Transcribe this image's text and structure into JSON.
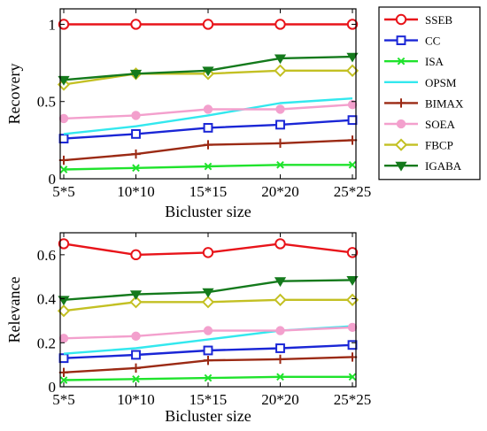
{
  "chart_data": [
    {
      "type": "line",
      "xlabel": "Bicluster size",
      "ylabel": "Recovery",
      "categories": [
        "5*5",
        "10*10",
        "15*15",
        "20*20",
        "25*25"
      ],
      "ylim": [
        0,
        1.1
      ],
      "yticks": [
        0,
        0.5,
        1
      ],
      "ytick_labels": [
        "0",
        "0.5",
        "1"
      ],
      "legend_position": "right",
      "series": [
        {
          "name": "SSEB",
          "color": "#e8141a",
          "marker": "circle-open",
          "values": [
            1.0,
            1.0,
            1.0,
            1.0,
            1.0
          ]
        },
        {
          "name": "CC",
          "color": "#1a26d6",
          "marker": "square-open",
          "values": [
            0.26,
            0.29,
            0.33,
            0.35,
            0.38
          ]
        },
        {
          "name": "ISA",
          "color": "#1fe32c",
          "marker": "x",
          "values": [
            0.06,
            0.07,
            0.08,
            0.09,
            0.09
          ]
        },
        {
          "name": "OPSM",
          "color": "#33e8ee",
          "marker": "none",
          "values": [
            0.29,
            0.34,
            0.41,
            0.49,
            0.52
          ]
        },
        {
          "name": "BIMAX",
          "color": "#9b2a14",
          "marker": "plus",
          "values": [
            0.12,
            0.16,
            0.22,
            0.23,
            0.25
          ]
        },
        {
          "name": "SOEA",
          "color": "#f3a0cd",
          "marker": "circle-filled",
          "values": [
            0.39,
            0.41,
            0.45,
            0.45,
            0.48
          ]
        },
        {
          "name": "FBCP",
          "color": "#c3c023",
          "marker": "diamond-open",
          "values": [
            0.61,
            0.68,
            0.68,
            0.7,
            0.7
          ]
        },
        {
          "name": "IGABA",
          "color": "#147a1c",
          "marker": "triangle-down",
          "values": [
            0.64,
            0.68,
            0.7,
            0.78,
            0.79
          ]
        }
      ]
    },
    {
      "type": "line",
      "xlabel": "Bicluster size",
      "ylabel": "Relevance",
      "categories": [
        "5*5",
        "10*10",
        "15*15",
        "20*20",
        "25*25"
      ],
      "ylim": [
        0,
        0.7
      ],
      "yticks": [
        0,
        0.2,
        0.4,
        0.6
      ],
      "ytick_labels": [
        "0",
        "0.2",
        "0.4",
        "0.6"
      ],
      "series": [
        {
          "name": "SSEB",
          "color": "#e8141a",
          "marker": "circle-open",
          "values": [
            0.65,
            0.6,
            0.61,
            0.65,
            0.61
          ]
        },
        {
          "name": "CC",
          "color": "#1a26d6",
          "marker": "square-open",
          "values": [
            0.13,
            0.145,
            0.165,
            0.175,
            0.19
          ]
        },
        {
          "name": "ISA",
          "color": "#1fe32c",
          "marker": "x",
          "values": [
            0.03,
            0.035,
            0.04,
            0.045,
            0.045
          ]
        },
        {
          "name": "OPSM",
          "color": "#33e8ee",
          "marker": "none",
          "values": [
            0.15,
            0.175,
            0.215,
            0.255,
            0.275
          ]
        },
        {
          "name": "BIMAX",
          "color": "#9b2a14",
          "marker": "plus",
          "values": [
            0.065,
            0.085,
            0.12,
            0.125,
            0.135
          ]
        },
        {
          "name": "SOEA",
          "color": "#f3a0cd",
          "marker": "circle-filled",
          "values": [
            0.22,
            0.23,
            0.255,
            0.255,
            0.27
          ]
        },
        {
          "name": "FBCP",
          "color": "#c3c023",
          "marker": "diamond-open",
          "values": [
            0.345,
            0.385,
            0.385,
            0.395,
            0.395
          ]
        },
        {
          "name": "IGABA",
          "color": "#147a1c",
          "marker": "triangle-down",
          "values": [
            0.395,
            0.42,
            0.43,
            0.48,
            0.485
          ]
        }
      ]
    }
  ]
}
